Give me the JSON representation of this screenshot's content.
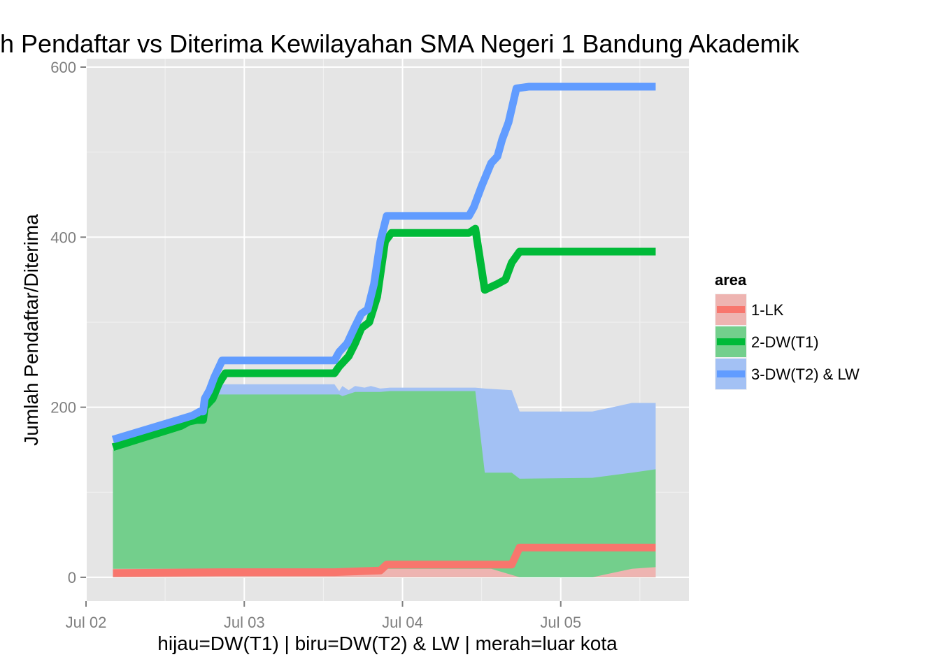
{
  "chart_data": {
    "type": "area",
    "title": "h Pendaftar vs Diterima Kewilayahan SMA Negeri 1 Bandung Akademik",
    "xlabel": "hijau=DW(T1) | biru=DW(T2) & LW | merah=luar kota",
    "ylabel": "Jumlah Pendaftar/Diterima",
    "x_ticks": [
      "Jul 02",
      "Jul 03",
      "Jul 04",
      "Jul 05"
    ],
    "y_ticks": [
      "0",
      "200",
      "400",
      "600"
    ],
    "xlim": [
      2.0,
      5.81
    ],
    "ylim": [
      -28,
      600
    ],
    "grid": true,
    "legend": {
      "title": "area",
      "position": "right",
      "items": [
        "1-LK",
        "2-DW(T1)",
        "3-DW(T2) & LW"
      ]
    },
    "colors": {
      "1-LK": "#F8766D",
      "2-DW(T1)": "#00BA38",
      "3-DW(T2) & LW": "#619CFF"
    },
    "line_series": [
      {
        "name": "3-DW(T2) & LW",
        "points": [
          [
            2.17,
            162
          ],
          [
            2.67,
            190
          ],
          [
            2.72,
            195
          ],
          [
            2.74,
            195
          ],
          [
            2.75,
            210
          ],
          [
            2.78,
            220
          ],
          [
            2.81,
            235
          ],
          [
            2.86,
            255
          ],
          [
            3.2,
            255
          ],
          [
            3.57,
            255
          ],
          [
            3.6,
            265
          ],
          [
            3.65,
            275
          ],
          [
            3.7,
            295
          ],
          [
            3.74,
            310
          ],
          [
            3.78,
            315
          ],
          [
            3.82,
            345
          ],
          [
            3.86,
            395
          ],
          [
            3.9,
            425
          ],
          [
            4.0,
            425
          ],
          [
            4.42,
            425
          ],
          [
            4.45,
            435
          ],
          [
            4.5,
            460
          ],
          [
            4.56,
            487
          ],
          [
            4.6,
            495
          ],
          [
            4.63,
            515
          ],
          [
            4.67,
            535
          ],
          [
            4.72,
            575
          ],
          [
            4.8,
            577
          ],
          [
            5.0,
            577
          ],
          [
            5.6,
            577
          ]
        ]
      },
      {
        "name": "2-DW(T1)",
        "points": [
          [
            2.17,
            153
          ],
          [
            2.6,
            178
          ],
          [
            2.65,
            183
          ],
          [
            2.7,
            185
          ],
          [
            2.74,
            185
          ],
          [
            2.75,
            200
          ],
          [
            2.8,
            210
          ],
          [
            2.84,
            228
          ],
          [
            2.88,
            240
          ],
          [
            3.2,
            240
          ],
          [
            3.57,
            240
          ],
          [
            3.6,
            248
          ],
          [
            3.66,
            260
          ],
          [
            3.7,
            275
          ],
          [
            3.74,
            293
          ],
          [
            3.79,
            300
          ],
          [
            3.84,
            330
          ],
          [
            3.89,
            395
          ],
          [
            3.93,
            405
          ],
          [
            4.0,
            405
          ],
          [
            4.42,
            405
          ],
          [
            4.46,
            410
          ],
          [
            4.52,
            338
          ],
          [
            4.6,
            345
          ],
          [
            4.65,
            350
          ],
          [
            4.69,
            370
          ],
          [
            4.74,
            383
          ],
          [
            5.0,
            383
          ],
          [
            5.6,
            383
          ]
        ]
      },
      {
        "name": "1-LK",
        "points": [
          [
            2.17,
            5
          ],
          [
            2.86,
            6
          ],
          [
            3.2,
            6
          ],
          [
            3.57,
            6
          ],
          [
            3.72,
            7
          ],
          [
            3.86,
            8
          ],
          [
            3.9,
            15
          ],
          [
            4.0,
            15
          ],
          [
            4.52,
            15
          ],
          [
            4.69,
            15
          ],
          [
            4.74,
            35
          ],
          [
            5.0,
            35
          ],
          [
            5.6,
            35
          ]
        ]
      }
    ],
    "area_series": [
      {
        "name": "1-LK",
        "points": [
          [
            2.17,
            10
          ],
          [
            2.86,
            10
          ],
          [
            3.57,
            10
          ],
          [
            3.86,
            10
          ],
          [
            3.92,
            10
          ],
          [
            4.5,
            10
          ],
          [
            4.56,
            10
          ],
          [
            4.74,
            0
          ],
          [
            5.2,
            0
          ],
          [
            5.45,
            10
          ],
          [
            5.6,
            12
          ]
        ]
      },
      {
        "name": "2-DW(T1)",
        "points": [
          [
            2.17,
            150
          ],
          [
            2.6,
            178
          ],
          [
            2.65,
            182
          ],
          [
            2.74,
            185
          ],
          [
            2.75,
            205
          ],
          [
            2.78,
            208
          ],
          [
            2.83,
            215
          ],
          [
            2.86,
            215
          ],
          [
            3.57,
            215
          ],
          [
            3.6,
            215
          ],
          [
            3.62,
            213
          ],
          [
            3.7,
            218
          ],
          [
            3.86,
            218
          ],
          [
            3.92,
            219
          ],
          [
            4.46,
            219
          ],
          [
            4.52,
            123
          ],
          [
            4.69,
            123
          ],
          [
            4.74,
            116
          ],
          [
            5.2,
            117
          ],
          [
            5.45,
            123
          ],
          [
            5.6,
            127
          ]
        ]
      },
      {
        "name": "3-DW(T2) & LW",
        "points": [
          [
            2.17,
            150
          ],
          [
            2.6,
            178
          ],
          [
            2.65,
            182
          ],
          [
            2.74,
            185
          ],
          [
            2.75,
            210
          ],
          [
            2.8,
            220
          ],
          [
            2.83,
            225
          ],
          [
            2.86,
            227
          ],
          [
            3.57,
            227
          ],
          [
            3.6,
            219
          ],
          [
            3.62,
            225
          ],
          [
            3.66,
            220
          ],
          [
            3.7,
            225
          ],
          [
            3.76,
            223
          ],
          [
            3.8,
            225
          ],
          [
            3.86,
            222
          ],
          [
            3.92,
            223
          ],
          [
            4.46,
            223
          ],
          [
            4.52,
            222
          ],
          [
            4.69,
            220
          ],
          [
            4.74,
            195
          ],
          [
            5.2,
            195
          ],
          [
            5.45,
            205
          ],
          [
            5.6,
            205
          ]
        ]
      }
    ]
  }
}
